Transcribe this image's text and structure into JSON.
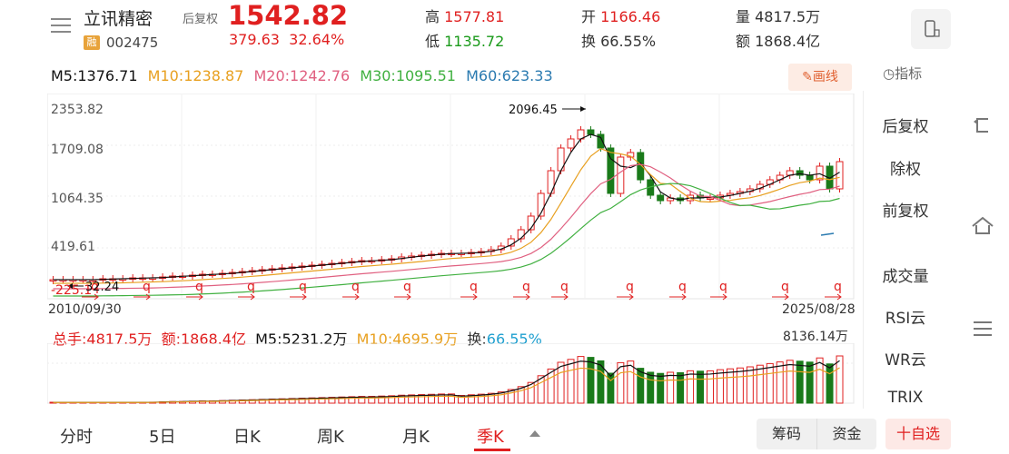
{
  "header": {
    "stock_name": "立讯精密",
    "margin_badge": "融",
    "stock_code": "002475",
    "price_mode": "后复权",
    "price": "1542.82",
    "change": "379.63",
    "change_pct": "32.64%",
    "high_label": "高",
    "high": "1577.81",
    "low_label": "低",
    "low": "1135.72",
    "open_label": "开",
    "open": "1166.46",
    "turnover_label": "换",
    "turnover": "66.55%",
    "volume_label": "量",
    "volume": "4817.5万",
    "amount_label": "额",
    "amount": "1868.4亿"
  },
  "ma": {
    "m5": "M5:1376.71",
    "m10": "M10:1238.87",
    "m20": "M20:1242.76",
    "m30": "M30:1095.51",
    "m60": "M60:623.33",
    "draw_label": "画线",
    "indicator_label": "指标"
  },
  "side_tabs": [
    "后复权",
    "除权",
    "前复权",
    "成交量",
    "RSI云",
    "WR云",
    "TRIX"
  ],
  "chart": {
    "y_ticks": [
      "2353.82",
      "1709.08",
      "1064.35",
      "419.61",
      "-225.1"
    ],
    "max_label": "2096.45",
    "min_label": "32.24",
    "start_date": "2010/09/30",
    "end_date": "2025/08/28",
    "marker": "q"
  },
  "volume_row": {
    "total": "总手:4817.5万",
    "amount": "额:1868.4亿",
    "m5": "M5:5231.2万",
    "m10": "M10:4695.9万",
    "turnover_label": "换:",
    "turnover": "66.55%",
    "max": "8136.14万"
  },
  "bottom_tabs": [
    "分时",
    "5日",
    "日K",
    "周K",
    "月K",
    "季K"
  ],
  "bottom_right": {
    "chips": "筹码",
    "funds": "资金",
    "add": "十自选"
  },
  "colors": {
    "up": "#e02020",
    "down": "#1a7a1a",
    "ma5": "#111111",
    "ma10": "#e8a020",
    "ma20": "#e06080",
    "ma30": "#40b040",
    "ma60": "#2a7ab0"
  },
  "chart_data": {
    "type": "candlestick",
    "x_range": [
      "2010/09/30",
      "2025/08/28"
    ],
    "y_range": [
      -225.1,
      2353.82
    ],
    "max_high": 2096.45,
    "min_low": 32.24,
    "last_close": 1542.82
  }
}
